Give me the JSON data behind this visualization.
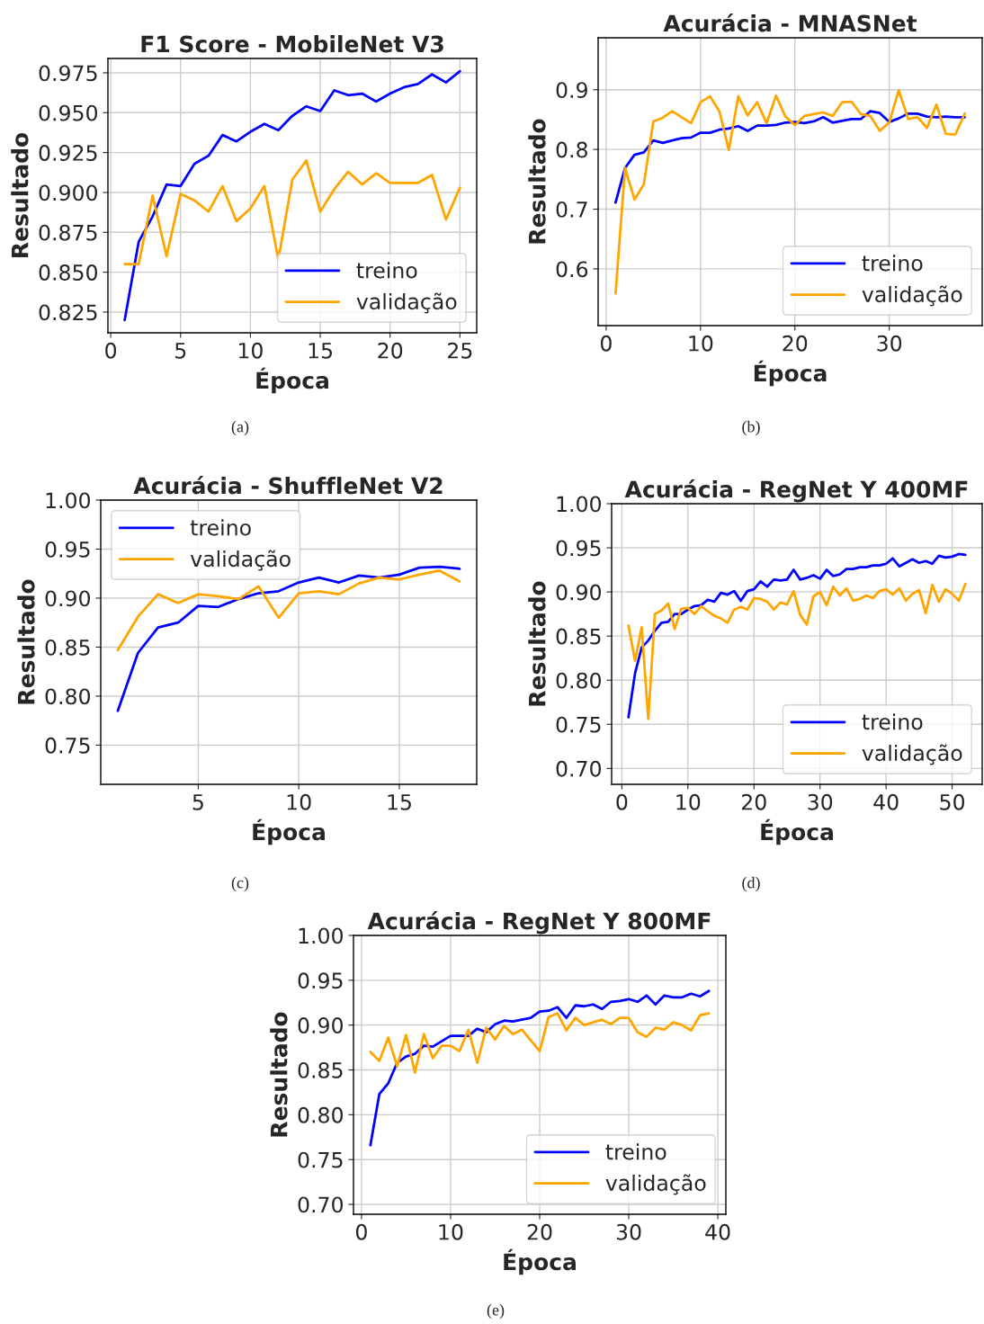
{
  "chart_data": [
    {
      "type": "line",
      "title": "F1 Score - MobileNet V3",
      "xlabel": "Época",
      "ylabel": "Resultado",
      "annotations": [
        "(a)"
      ],
      "grid": true,
      "legend": "lower right",
      "x": [
        1,
        2,
        3,
        4,
        5,
        6,
        7,
        8,
        9,
        10,
        11,
        12,
        13,
        14,
        15,
        16,
        17,
        18,
        19,
        20,
        21,
        22,
        23,
        24,
        25
      ],
      "xlim": [
        -0.2,
        26.2
      ],
      "xticks": [
        0,
        5,
        10,
        15,
        20,
        25
      ],
      "ylim": [
        0.812,
        0.984
      ],
      "yticks": [
        0.825,
        {
          "value": 0.85,
          "label": "0.850"
        },
        0.875,
        {
          "value": 0.9,
          "label": "0.900"
        },
        0.925,
        {
          "value": 0.95,
          "label": "0.950"
        },
        0.975
      ],
      "series": [
        {
          "name": "treino",
          "color": "#0000ff",
          "values": [
            0.82,
            0.869,
            0.885,
            0.905,
            0.904,
            0.918,
            0.923,
            0.936,
            0.932,
            0.938,
            0.943,
            0.939,
            0.948,
            0.954,
            0.951,
            0.964,
            0.961,
            0.962,
            0.957,
            0.962,
            0.966,
            0.968,
            0.974,
            0.969,
            0.976
          ]
        },
        {
          "name": "validação",
          "color": "#ffa500",
          "values": [
            0.855,
            0.855,
            0.898,
            0.86,
            0.899,
            0.895,
            0.888,
            0.904,
            0.882,
            0.89,
            0.904,
            0.858,
            0.908,
            0.92,
            0.888,
            0.902,
            0.913,
            0.905,
            0.912,
            0.906,
            0.906,
            0.906,
            0.911,
            0.883,
            0.903
          ]
        }
      ]
    },
    {
      "type": "line",
      "title": "Acurácia - MNASNet",
      "xlabel": "Época",
      "ylabel": "Resultado",
      "annotations": [
        "(b)"
      ],
      "grid": true,
      "legend": "lower right",
      "x": [
        1,
        2,
        3,
        4,
        5,
        6,
        7,
        8,
        9,
        10,
        11,
        12,
        13,
        14,
        15,
        16,
        17,
        18,
        19,
        20,
        21,
        22,
        23,
        24,
        25,
        26,
        27,
        28,
        29,
        30,
        31,
        32,
        33,
        34,
        35,
        36,
        37,
        38
      ],
      "xlim": [
        -0.85,
        39.85
      ],
      "xticks": [
        0,
        10,
        20,
        30
      ],
      "ylim": [
        0.505,
        0.987
      ],
      "yticks": [
        0.6,
        0.7,
        0.8,
        0.9
      ],
      "series": [
        {
          "name": "treino",
          "color": "#0000ff",
          "values": [
            0.711,
            0.769,
            0.791,
            0.795,
            0.815,
            0.811,
            0.815,
            0.819,
            0.82,
            0.828,
            0.828,
            0.833,
            0.835,
            0.839,
            0.831,
            0.84,
            0.84,
            0.841,
            0.845,
            0.846,
            0.844,
            0.847,
            0.854,
            0.845,
            0.848,
            0.851,
            0.851,
            0.864,
            0.861,
            0.846,
            0.852,
            0.86,
            0.86,
            0.855,
            0.854,
            0.855,
            0.854,
            0.854
          ]
        },
        {
          "name": "validação",
          "color": "#ffa500",
          "values": [
            0.559,
            0.769,
            0.716,
            0.742,
            0.847,
            0.853,
            0.864,
            0.854,
            0.844,
            0.879,
            0.889,
            0.864,
            0.799,
            0.889,
            0.857,
            0.879,
            0.844,
            0.89,
            0.855,
            0.841,
            0.856,
            0.859,
            0.862,
            0.856,
            0.879,
            0.88,
            0.859,
            0.856,
            0.831,
            0.845,
            0.899,
            0.851,
            0.854,
            0.836,
            0.875,
            0.826,
            0.825,
            0.86
          ]
        }
      ]
    },
    {
      "type": "line",
      "title": "Acurácia - ShuffleNet V2",
      "xlabel": "Época",
      "ylabel": "Resultado",
      "annotations": [
        "(c)"
      ],
      "grid": true,
      "legend": "upper left",
      "x": [
        1,
        2,
        3,
        4,
        5,
        6,
        7,
        8,
        9,
        10,
        11,
        12,
        13,
        14,
        15,
        16,
        17,
        18
      ],
      "xlim": [
        0.15,
        18.85
      ],
      "xticks": [
        5,
        10,
        15
      ],
      "ylim": [
        0.71,
        1.0
      ],
      "yticks": [
        0.75,
        {
          "value": 0.8,
          "label": "0.80"
        },
        0.85,
        {
          "value": 0.9,
          "label": "0.90"
        },
        0.95,
        {
          "value": 1.0,
          "label": "1.00"
        }
      ],
      "series": [
        {
          "name": "treino",
          "color": "#0000ff",
          "values": [
            0.785,
            0.844,
            0.87,
            0.875,
            0.892,
            0.891,
            0.899,
            0.905,
            0.907,
            0.916,
            0.921,
            0.916,
            0.923,
            0.921,
            0.924,
            0.931,
            0.932,
            0.93
          ]
        },
        {
          "name": "validação",
          "color": "#ffa500",
          "values": [
            0.847,
            0.881,
            0.904,
            0.895,
            0.904,
            0.902,
            0.899,
            0.912,
            0.88,
            0.905,
            0.907,
            0.904,
            0.915,
            0.921,
            0.919,
            0.924,
            0.928,
            0.917
          ]
        }
      ]
    },
    {
      "type": "line",
      "title": "Acurácia - RegNet Y 400MF",
      "xlabel": "Época",
      "ylabel": "Resultado",
      "annotations": [
        "(d)"
      ],
      "grid": true,
      "legend": "lower right",
      "x": [
        1,
        2,
        3,
        4,
        5,
        6,
        7,
        8,
        9,
        10,
        11,
        12,
        13,
        14,
        15,
        16,
        17,
        18,
        19,
        20,
        21,
        22,
        23,
        24,
        25,
        26,
        27,
        28,
        29,
        30,
        31,
        32,
        33,
        34,
        35,
        36,
        37,
        38,
        39,
        40,
        41,
        42,
        43,
        44,
        45,
        46,
        47,
        48,
        49,
        50,
        51,
        52
      ],
      "xlim": [
        -1.55,
        54.55
      ],
      "xticks": [
        0,
        10,
        20,
        30,
        40,
        50
      ],
      "ylim": [
        0.682,
        1.0
      ],
      "yticks": [
        {
          "value": 0.7,
          "label": "0.70"
        },
        0.75,
        {
          "value": 0.8,
          "label": "0.80"
        },
        0.85,
        {
          "value": 0.9,
          "label": "0.90"
        },
        0.95,
        {
          "value": 1.0,
          "label": "1.00"
        }
      ],
      "series": [
        {
          "name": "treino",
          "color": "#0000ff",
          "values": [
            0.758,
            0.808,
            0.837,
            0.845,
            0.856,
            0.865,
            0.866,
            0.875,
            0.875,
            0.88,
            0.884,
            0.885,
            0.891,
            0.889,
            0.899,
            0.897,
            0.901,
            0.89,
            0.901,
            0.903,
            0.912,
            0.906,
            0.914,
            0.913,
            0.914,
            0.925,
            0.914,
            0.916,
            0.919,
            0.915,
            0.925,
            0.918,
            0.92,
            0.926,
            0.926,
            0.928,
            0.928,
            0.93,
            0.93,
            0.932,
            0.938,
            0.929,
            0.933,
            0.937,
            0.933,
            0.935,
            0.932,
            0.941,
            0.939,
            0.94,
            0.943,
            0.942
          ]
        },
        {
          "name": "validação",
          "color": "#ffa500",
          "values": [
            0.862,
            0.822,
            0.86,
            0.756,
            0.875,
            0.879,
            0.887,
            0.858,
            0.881,
            0.882,
            0.875,
            0.884,
            0.878,
            0.873,
            0.87,
            0.865,
            0.88,
            0.883,
            0.88,
            0.893,
            0.892,
            0.889,
            0.88,
            0.888,
            0.886,
            0.901,
            0.874,
            0.863,
            0.895,
            0.9,
            0.885,
            0.906,
            0.896,
            0.904,
            0.89,
            0.892,
            0.896,
            0.893,
            0.901,
            0.903,
            0.897,
            0.904,
            0.89,
            0.898,
            0.902,
            0.876,
            0.908,
            0.889,
            0.903,
            0.898,
            0.89,
            0.909
          ]
        }
      ]
    },
    {
      "type": "line",
      "title": "Acurácia - RegNet Y 800MF",
      "xlabel": "Época",
      "ylabel": "Resultado",
      "annotations": [
        "(e)"
      ],
      "grid": true,
      "legend": "lower right",
      "x": [
        1,
        2,
        3,
        4,
        5,
        6,
        7,
        8,
        9,
        10,
        11,
        12,
        13,
        14,
        15,
        16,
        17,
        18,
        19,
        20,
        21,
        22,
        23,
        24,
        25,
        26,
        27,
        28,
        29,
        30,
        31,
        32,
        33,
        34,
        35,
        36,
        37,
        38,
        39
      ],
      "xlim": [
        -0.9,
        40.9
      ],
      "xticks": [
        0,
        10,
        20,
        30,
        40
      ],
      "ylim": [
        0.689,
        1.0
      ],
      "yticks": [
        {
          "value": 0.7,
          "label": "0.70"
        },
        0.75,
        {
          "value": 0.8,
          "label": "0.80"
        },
        0.85,
        {
          "value": 0.9,
          "label": "0.90"
        },
        0.95,
        {
          "value": 1.0,
          "label": "1.00"
        }
      ],
      "series": [
        {
          "name": "treino",
          "color": "#0000ff",
          "values": [
            0.766,
            0.823,
            0.835,
            0.858,
            0.865,
            0.868,
            0.877,
            0.876,
            0.882,
            0.888,
            0.888,
            0.888,
            0.896,
            0.892,
            0.901,
            0.905,
            0.904,
            0.906,
            0.908,
            0.915,
            0.916,
            0.92,
            0.908,
            0.922,
            0.921,
            0.923,
            0.918,
            0.926,
            0.927,
            0.929,
            0.926,
            0.933,
            0.923,
            0.933,
            0.931,
            0.931,
            0.935,
            0.932,
            0.938
          ]
        },
        {
          "name": "validação",
          "color": "#ffa500",
          "values": [
            0.87,
            0.86,
            0.886,
            0.854,
            0.889,
            0.847,
            0.89,
            0.863,
            0.877,
            0.877,
            0.871,
            0.895,
            0.858,
            0.897,
            0.884,
            0.899,
            0.89,
            0.895,
            0.883,
            0.871,
            0.909,
            0.913,
            0.894,
            0.908,
            0.9,
            0.903,
            0.906,
            0.901,
            0.908,
            0.908,
            0.892,
            0.887,
            0.897,
            0.895,
            0.903,
            0.9,
            0.894,
            0.911,
            0.913
          ]
        }
      ]
    }
  ]
}
